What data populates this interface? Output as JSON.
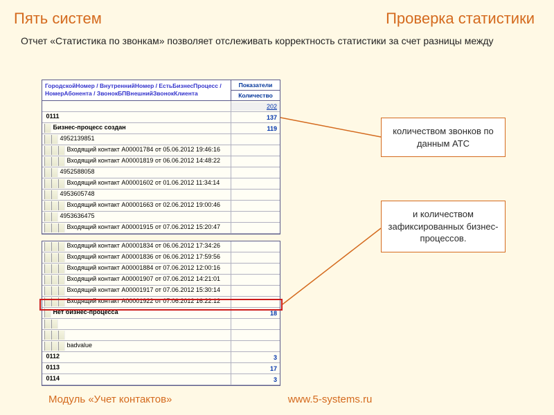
{
  "header": {
    "left": "Пять систем",
    "right": "Проверка статистики"
  },
  "subtitle": "Отчет «Статистика по звонкам» позволяет отслеживать корректность статистики за счет разницы между",
  "footer": {
    "left": "Модуль «Учет контактов»",
    "right": "www.5-systems.ru"
  },
  "callout1": "количеством звонков по данным АТС",
  "callout2": "и количеством зафиксированных бизнес-процессов.",
  "table1": {
    "hdr_left": "ГородскойНомер / ВнутреннийНомер / ЕстьБизнесПроцесс / НомерАбонента / ЗвонокБПВнешнийЗвонокКлиента",
    "hdr_r1": "Показатели",
    "hdr_r2": "Количество",
    "rows": [
      {
        "indent": 0,
        "label": "",
        "val": "202",
        "cls": "total"
      },
      {
        "indent": 0,
        "label": "0111",
        "val": "137",
        "cls": "bold"
      },
      {
        "indent": 1,
        "label": "Бизнес-процесс создан",
        "val": "119",
        "cls": "bold"
      },
      {
        "indent": 2,
        "label": "4952139851",
        "val": ""
      },
      {
        "indent": 3,
        "label": "Входящий контакт A00001784 от 05.06.2012 19:46:16",
        "val": ""
      },
      {
        "indent": 3,
        "label": "Входящий контакт A00001819 от 06.06.2012 14:48:22",
        "val": ""
      },
      {
        "indent": 2,
        "label": "4952588058",
        "val": ""
      },
      {
        "indent": 3,
        "label": "Входящий контакт A00001602 от 01.06.2012 11:34:14",
        "val": ""
      },
      {
        "indent": 2,
        "label": "4953605748",
        "val": ""
      },
      {
        "indent": 3,
        "label": "Входящий контакт A00001663 от 02.06.2012 19:00:46",
        "val": ""
      },
      {
        "indent": 2,
        "label": "4953636475",
        "val": ""
      },
      {
        "indent": 3,
        "label": "Входящий контакт A00001915 от 07.06.2012 15:20:47",
        "val": ""
      }
    ]
  },
  "table2": {
    "rows": [
      {
        "indent": 3,
        "label": "Входящий контакт A00001834 от 06.06.2012 17:34:26",
        "val": ""
      },
      {
        "indent": 3,
        "label": "Входящий контакт A00001836 от 06.06.2012 17:59:56",
        "val": ""
      },
      {
        "indent": 3,
        "label": "Входящий контакт A00001884 от 07.06.2012 12:00:16",
        "val": ""
      },
      {
        "indent": 3,
        "label": "Входящий контакт A00001907 от 07.06.2012 14:21:01",
        "val": ""
      },
      {
        "indent": 3,
        "label": "Входящий контакт A00001917 от 07.06.2012 15:30:14",
        "val": ""
      },
      {
        "indent": 3,
        "label": "Входящий контакт A00001922 от 07.06.2012 16:22:12",
        "val": ""
      },
      {
        "indent": 1,
        "label": "Нет бизнес-процесса",
        "val": "18",
        "cls": "bold"
      },
      {
        "indent": 2,
        "label": "",
        "val": ""
      },
      {
        "indent": 3,
        "label": "",
        "val": ""
      },
      {
        "indent": 3,
        "label": "badvalue",
        "val": ""
      },
      {
        "indent": 0,
        "label": "0112",
        "val": "3",
        "cls": "bold"
      },
      {
        "indent": 0,
        "label": "0113",
        "val": "17",
        "cls": "bold"
      },
      {
        "indent": 0,
        "label": "0114",
        "val": "3",
        "cls": "bold"
      }
    ]
  },
  "colors": {
    "accent": "#d46a1e",
    "bg": "#fff9e5",
    "table_border": "#5a5a8a",
    "red": "#cc1b1b"
  }
}
